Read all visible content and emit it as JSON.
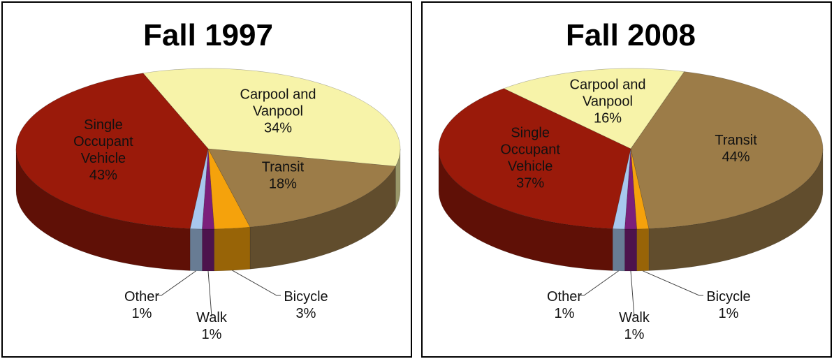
{
  "chart_data": [
    {
      "type": "pie",
      "title": "Fall 1997",
      "categories": [
        "Carpool and Vanpool",
        "Transit",
        "Bicycle",
        "Walk",
        "Other",
        "Single Occupant Vehicle"
      ],
      "values": [
        34,
        18,
        3,
        1,
        1,
        43
      ],
      "value_labels": [
        "34%",
        "18%",
        "3%",
        "1%",
        "1%",
        "43%"
      ],
      "colors": [
        "#f7f3a9",
        "#9c7c48",
        "#f5a20c",
        "#7c1f7b",
        "#a8c8ee",
        "#9a1a0a"
      ]
    },
    {
      "type": "pie",
      "title": "Fall 2008",
      "categories": [
        "Carpool and Vanpool",
        "Transit",
        "Bicycle",
        "Walk",
        "Other",
        "Single Occupant Vehicle"
      ],
      "values": [
        16,
        44,
        1,
        1,
        1,
        37
      ],
      "value_labels": [
        "16%",
        "44%",
        "1%",
        "1%",
        "1%",
        "37%"
      ],
      "colors": [
        "#f7f3a9",
        "#9c7c48",
        "#f5a20c",
        "#7c1f7b",
        "#a8c8ee",
        "#9a1a0a"
      ]
    }
  ]
}
